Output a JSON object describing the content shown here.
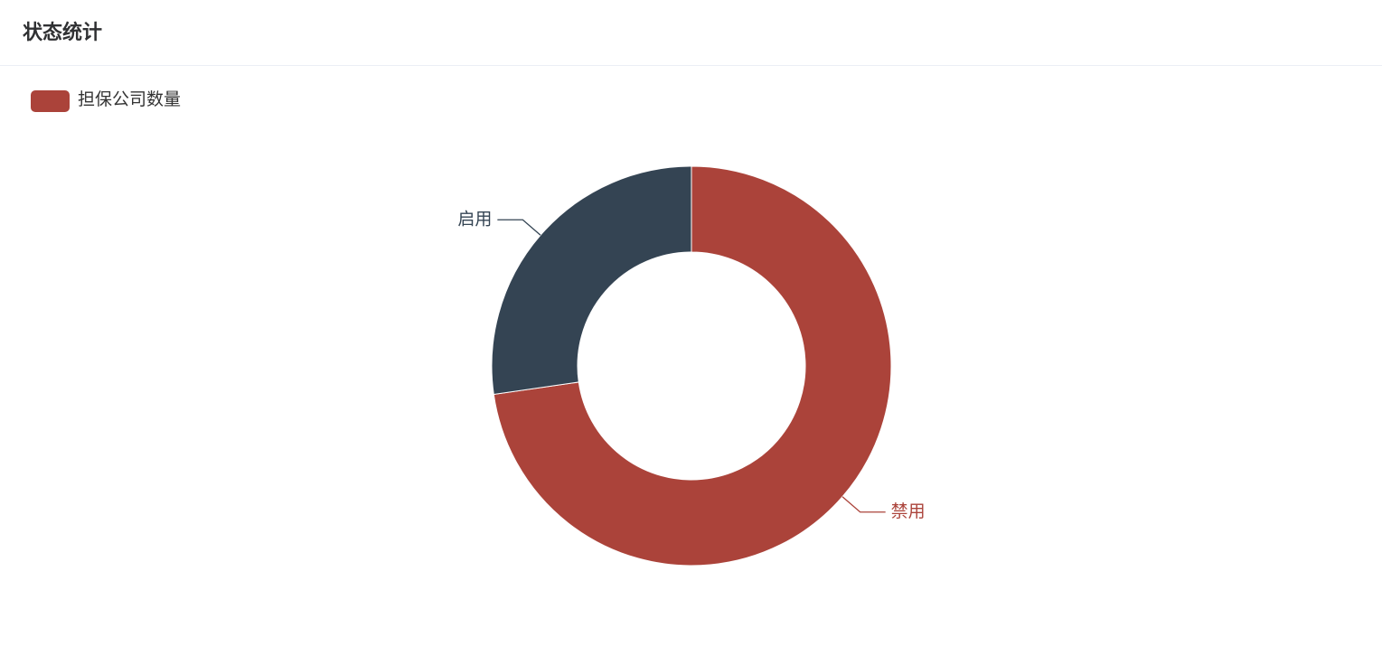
{
  "header": {
    "title": "状态统计"
  },
  "chart_data": {
    "type": "pie",
    "series_name": "担保公司数量",
    "categories": [
      "禁用",
      "启用"
    ],
    "values": [
      8,
      3
    ],
    "colors": [
      "#ab433a",
      "#344453"
    ]
  }
}
